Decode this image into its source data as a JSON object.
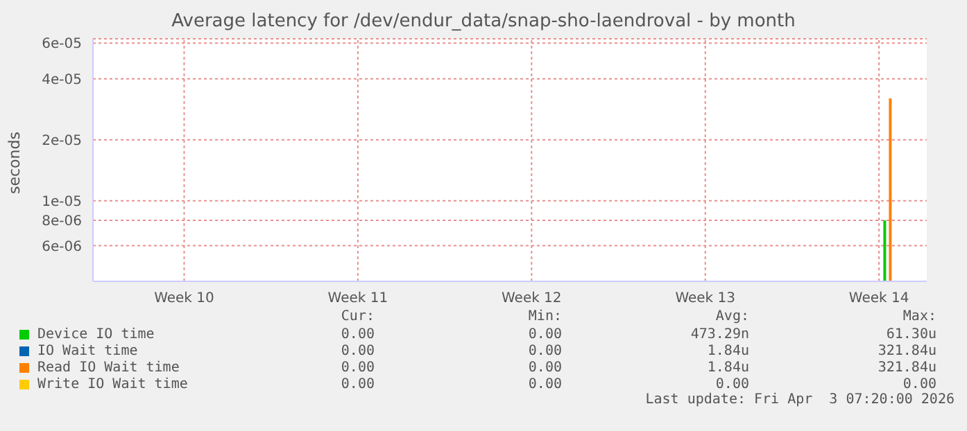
{
  "chart_data": {
    "type": "bar",
    "title": "Average latency for /dev/endur_data/snap-sho-laendroval - by month",
    "ylabel": "seconds",
    "log": "y",
    "grid": true,
    "legend": "bottom",
    "categories": [
      null,
      null,
      null,
      null,
      null,
      null,
      null,
      null,
      null,
      null,
      "Week 10",
      null,
      null,
      null,
      null,
      null,
      null,
      null,
      null,
      null,
      null,
      null,
      null,
      null,
      null,
      null,
      null,
      null,
      null,
      null,
      "Week 11",
      null,
      null,
      null,
      null,
      null,
      null,
      null,
      null,
      null,
      null,
      null,
      null,
      null,
      null,
      null,
      null,
      null,
      null,
      null,
      "Week 12",
      null,
      null,
      null,
      null,
      null,
      null,
      null,
      null,
      null,
      null,
      null,
      null,
      null,
      null,
      null,
      null,
      null,
      null,
      null,
      "Week 13",
      null,
      null,
      null,
      null,
      null,
      null,
      null,
      null,
      null,
      null,
      null,
      null,
      null,
      null,
      null,
      null,
      null,
      null,
      null,
      "Week 14",
      null,
      null,
      null,
      null,
      null
    ],
    "ylim": [
      4e-06,
      6.3e-05
    ],
    "yticks": [
      {
        "value": 6e-06,
        "label": "6e-06"
      },
      {
        "value": 8e-06,
        "label": "8e-06"
      },
      {
        "value": 1e-05,
        "label": "1e-05"
      },
      {
        "value": 2e-05,
        "label": "2e-05"
      },
      {
        "value": 4e-05,
        "label": "4e-05"
      },
      {
        "value": 6e-05,
        "label": "6e-05"
      }
    ],
    "series": [
      {
        "name": "Device IO time",
        "color": "#00cc00",
        "values": [
          null,
          null,
          null,
          null,
          null,
          null,
          null,
          null,
          null,
          null,
          null,
          null,
          null,
          null,
          null,
          null,
          null,
          null,
          null,
          null,
          null,
          null,
          null,
          null,
          null,
          null,
          null,
          null,
          null,
          null,
          null,
          null,
          null,
          null,
          null,
          null,
          null,
          null,
          null,
          null,
          null,
          null,
          null,
          null,
          null,
          null,
          null,
          null,
          null,
          null,
          null,
          null,
          null,
          null,
          null,
          null,
          null,
          null,
          null,
          null,
          null,
          null,
          null,
          null,
          null,
          null,
          null,
          null,
          null,
          null,
          null,
          null,
          null,
          null,
          null,
          null,
          null,
          null,
          null,
          null,
          null,
          null,
          null,
          null,
          null,
          null,
          null,
          null,
          null,
          null,
          null,
          8e-06,
          null,
          null,
          null,
          null
        ]
      },
      {
        "name": "IO Wait time",
        "color": "#0066b3",
        "values": [
          null,
          null,
          null,
          null,
          null,
          null,
          null,
          null,
          null,
          null,
          null,
          null,
          null,
          null,
          null,
          null,
          null,
          null,
          null,
          null,
          null,
          null,
          null,
          null,
          null,
          null,
          null,
          null,
          null,
          null,
          null,
          null,
          null,
          null,
          null,
          null,
          null,
          null,
          null,
          null,
          null,
          null,
          null,
          null,
          null,
          null,
          null,
          null,
          null,
          null,
          null,
          null,
          null,
          null,
          null,
          null,
          null,
          null,
          null,
          null,
          null,
          null,
          null,
          null,
          null,
          null,
          null,
          null,
          null,
          null,
          null,
          null,
          null,
          null,
          null,
          null,
          null,
          null,
          null,
          null,
          null,
          null,
          null,
          null,
          null,
          null,
          null,
          null,
          null,
          null,
          null,
          null,
          null,
          null,
          null,
          null
        ]
      },
      {
        "name": "Read IO Wait time",
        "color": "#ff8000",
        "values": [
          null,
          null,
          null,
          null,
          null,
          null,
          null,
          null,
          null,
          null,
          null,
          null,
          null,
          null,
          null,
          null,
          null,
          null,
          null,
          null,
          null,
          null,
          null,
          null,
          null,
          null,
          null,
          null,
          null,
          null,
          null,
          null,
          null,
          null,
          null,
          null,
          null,
          null,
          null,
          null,
          null,
          null,
          null,
          null,
          null,
          null,
          null,
          null,
          null,
          null,
          null,
          null,
          null,
          null,
          null,
          null,
          null,
          null,
          null,
          null,
          null,
          null,
          null,
          null,
          null,
          null,
          null,
          null,
          null,
          null,
          null,
          null,
          null,
          null,
          null,
          null,
          null,
          null,
          null,
          null,
          null,
          null,
          null,
          null,
          null,
          null,
          null,
          null,
          null,
          null,
          null,
          3.2e-05,
          null,
          null,
          null,
          null
        ]
      },
      {
        "name": "Write IO Wait time",
        "color": "#ffcc00",
        "type": "line",
        "values": [
          null,
          null,
          null,
          null,
          null,
          null,
          null,
          null,
          null,
          null,
          null,
          null,
          null,
          null,
          null,
          null,
          null,
          null,
          null,
          null,
          null,
          null,
          null,
          null,
          null,
          null,
          null,
          null,
          null,
          null,
          null,
          null,
          null,
          null,
          null,
          null,
          null,
          null,
          null,
          null,
          null,
          null,
          null,
          null,
          null,
          null,
          null,
          null,
          null,
          null,
          null,
          null,
          null,
          null,
          null,
          null,
          null,
          null,
          null,
          null,
          null,
          null,
          null,
          null,
          null,
          null,
          null,
          null,
          null,
          null,
          null,
          null,
          null,
          null,
          null,
          null,
          null,
          null,
          null,
          null,
          null,
          null,
          null,
          null,
          null,
          null,
          null,
          null,
          null,
          null,
          null,
          null,
          null,
          null,
          null,
          null
        ]
      }
    ],
    "annotations": [
      "Cur:",
      "Min:",
      "Avg:",
      "Max:",
      "0.00",
      "0.00",
      "473.29n",
      "61.30u",
      "0.00",
      "0.00",
      "1.84u",
      "321.84u",
      "0.00",
      "0.00",
      "1.84u",
      "321.84u",
      "0.00",
      "0.00",
      "0.00",
      "0.00",
      "Last update: Fri Apr  3 07:20:00 2026"
    ]
  }
}
